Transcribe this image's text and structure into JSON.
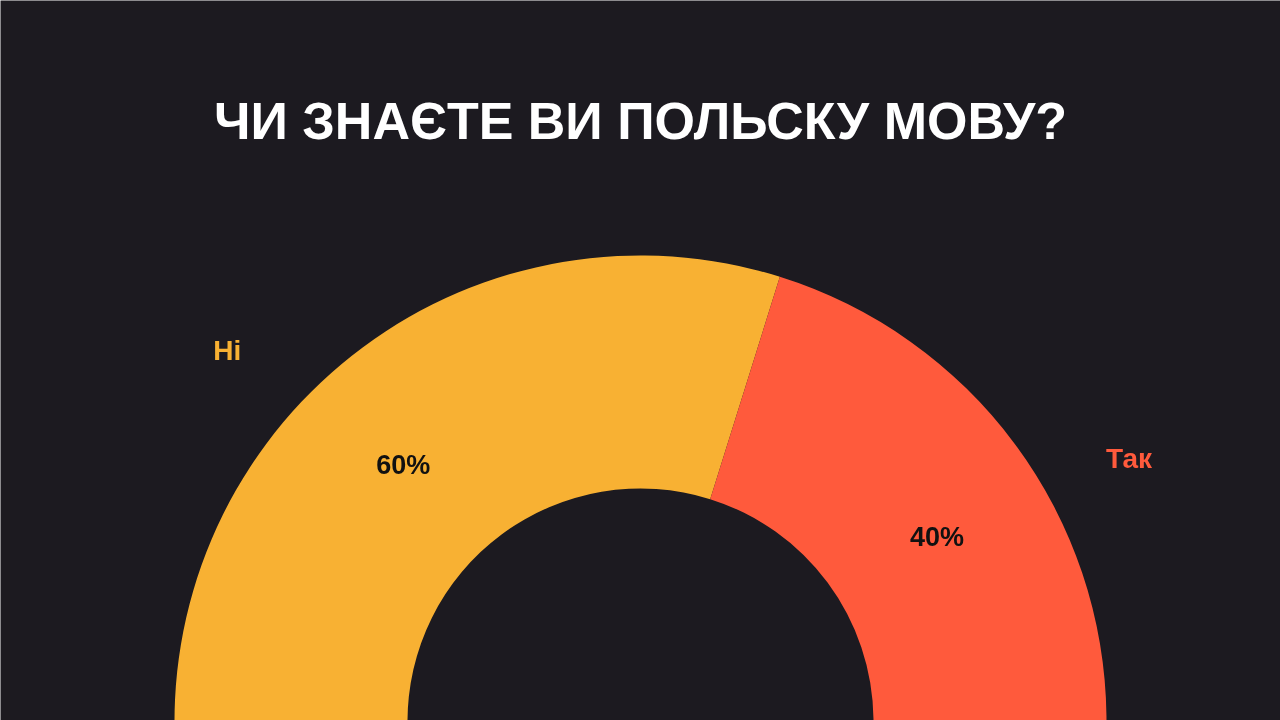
{
  "chart_data": {
    "type": "donut",
    "title": "ЧИ ЗНАЄТЕ ВИ ПОЛЬСКУ МОВУ?",
    "categories": [
      "Ні",
      "Так"
    ],
    "values": [
      60,
      40
    ],
    "value_labels": [
      "60%",
      "40%"
    ],
    "colors": [
      "#f8b133",
      "#ff5a3c"
    ]
  }
}
